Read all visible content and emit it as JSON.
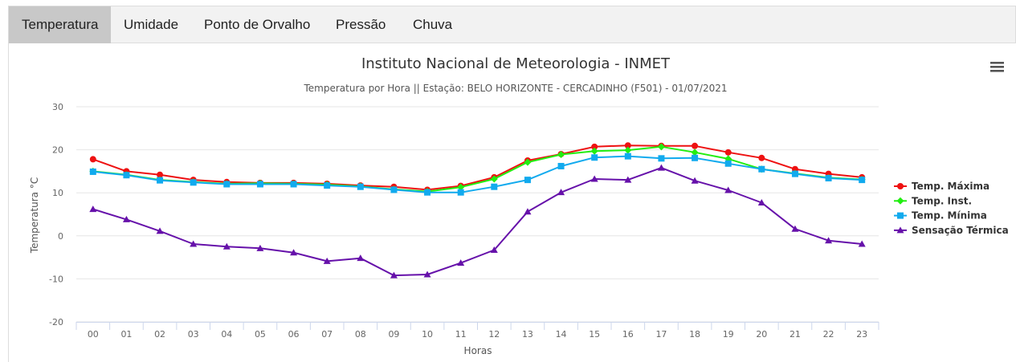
{
  "tabs": [
    {
      "label": "Temperatura",
      "active": true
    },
    {
      "label": "Umidade",
      "active": false
    },
    {
      "label": "Ponto de Orvalho",
      "active": false
    },
    {
      "label": "Pressão",
      "active": false
    },
    {
      "label": "Chuva",
      "active": false
    }
  ],
  "menu_icon": "hamburger-menu-icon",
  "chart_data": {
    "type": "line",
    "title": "Instituto Nacional de Meteorologia - INMET",
    "subtitle": "Temperatura por Hora || Estação: BELO HORIZONTE - CERCADINHO (F501) - 01/07/2021",
    "xlabel": "Horas",
    "ylabel": "Temperatura °C",
    "ylim": [
      -20,
      30
    ],
    "yticks": [
      "30",
      "20",
      "10",
      "0",
      "-10",
      "-20"
    ],
    "grid": true,
    "legend_position": "right",
    "categories": [
      "00",
      "01",
      "02",
      "03",
      "04",
      "05",
      "06",
      "07",
      "08",
      "09",
      "10",
      "11",
      "12",
      "13",
      "14",
      "15",
      "16",
      "17",
      "18",
      "19",
      "20",
      "21",
      "22",
      "23"
    ],
    "series": [
      {
        "name": "Temp. Máxima",
        "color": "#ee1111",
        "marker": "circle",
        "values": [
          17.8,
          15.0,
          14.2,
          13.0,
          12.5,
          12.3,
          12.3,
          12.1,
          11.7,
          11.4,
          10.7,
          11.6,
          13.6,
          17.5,
          19.0,
          20.7,
          21.0,
          20.9,
          20.9,
          19.4,
          18.1,
          15.5,
          14.4,
          13.6
        ]
      },
      {
        "name": "Temp. Inst.",
        "color": "#22ee11",
        "marker": "diamond",
        "values": [
          15.0,
          14.2,
          13.0,
          12.5,
          12.1,
          12.2,
          12.1,
          11.9,
          11.5,
          10.8,
          10.3,
          11.3,
          13.2,
          17.1,
          18.9,
          19.7,
          19.9,
          20.7,
          19.4,
          17.9,
          15.5,
          14.5,
          13.5,
          13.1
        ]
      },
      {
        "name": "Temp. Mínima",
        "color": "#11aaee",
        "marker": "square",
        "values": [
          14.9,
          14.1,
          12.9,
          12.4,
          12.0,
          12.0,
          12.0,
          11.7,
          11.4,
          10.7,
          10.1,
          10.1,
          11.4,
          13.0,
          16.2,
          18.2,
          18.5,
          18.0,
          18.1,
          16.8,
          15.5,
          14.4,
          13.4,
          13.0
        ]
      },
      {
        "name": "Sensação Térmica",
        "color": "#6611aa",
        "marker": "triangle",
        "values": [
          6.2,
          3.8,
          1.1,
          -1.9,
          -2.5,
          -2.9,
          -3.9,
          -5.9,
          -5.2,
          -9.2,
          -9.0,
          -6.3,
          -3.3,
          5.6,
          10.1,
          13.2,
          13.0,
          15.8,
          12.8,
          10.6,
          7.7,
          1.6,
          -1.1,
          -1.9
        ]
      }
    ]
  }
}
